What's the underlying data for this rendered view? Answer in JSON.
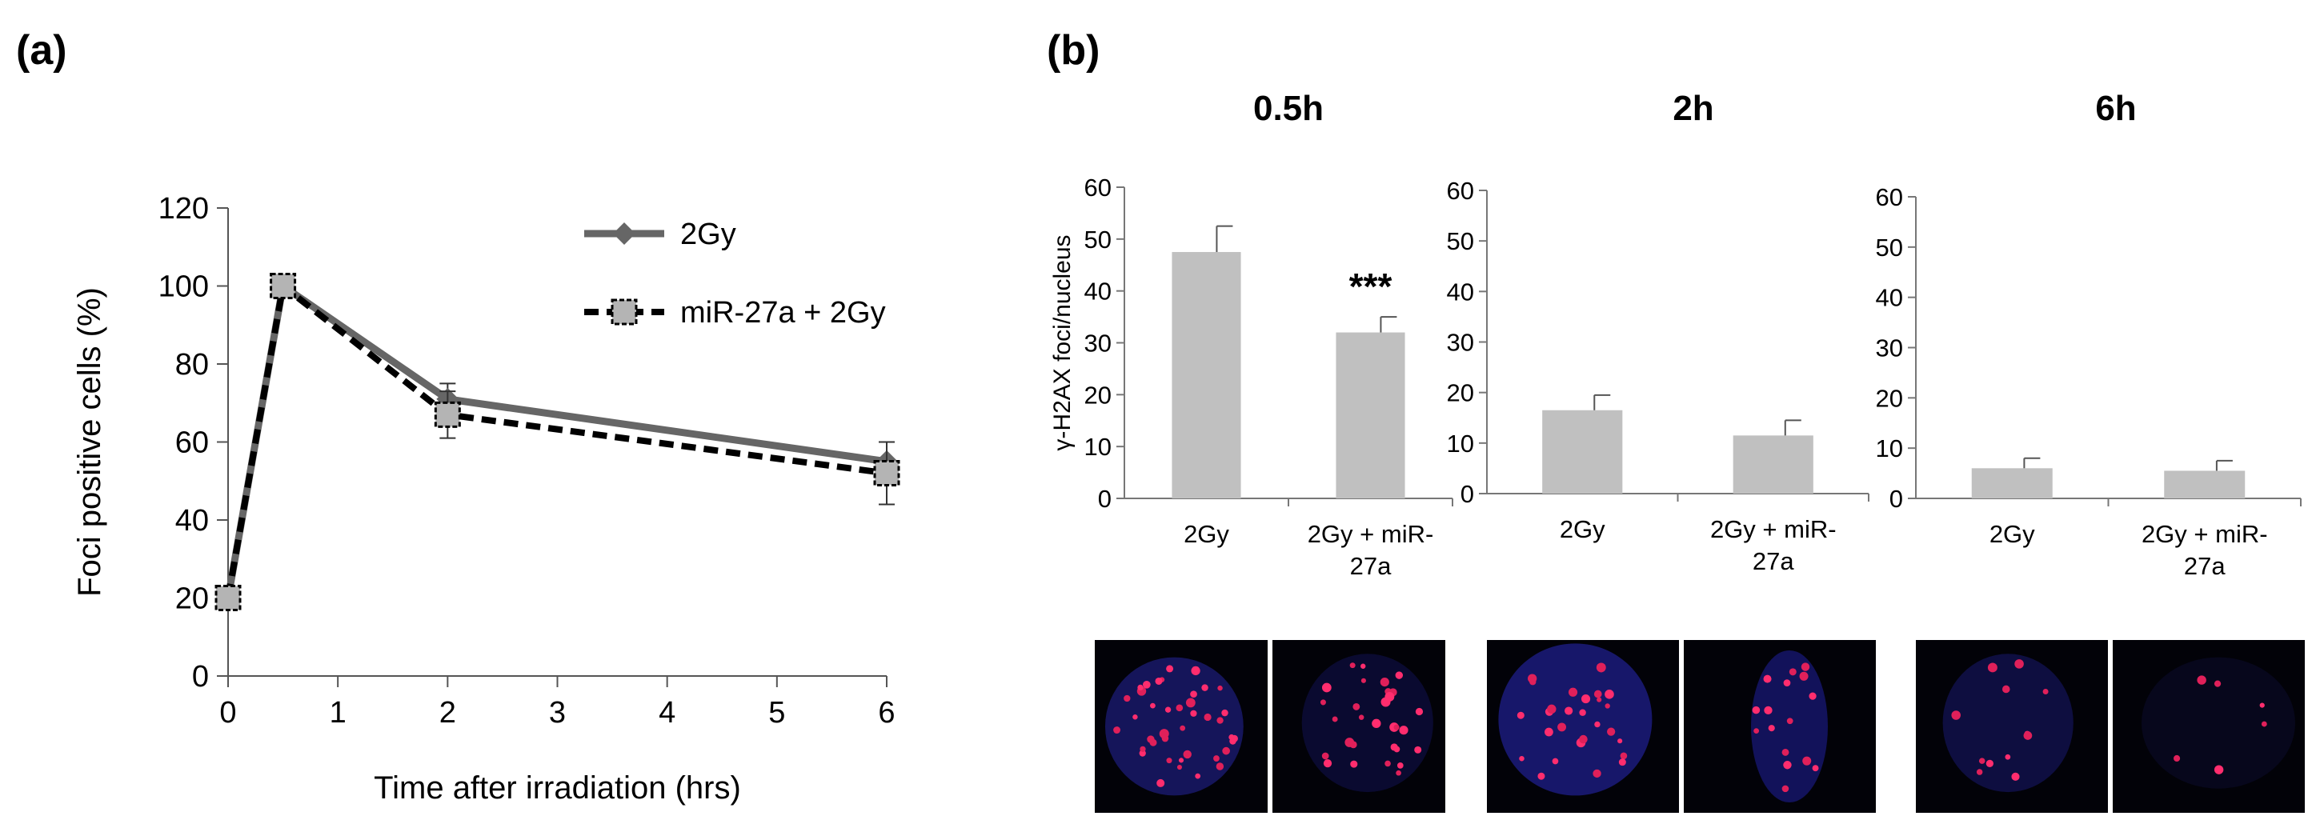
{
  "figure": {
    "panel_a_label": "(a)",
    "panel_b_label": "(b)"
  },
  "chart_data": [
    {
      "type": "line",
      "panel": "(a)",
      "xlabel": "Time after irradiation (hrs)",
      "ylabel": "Foci positive cells (%)",
      "xlim": [
        0,
        6
      ],
      "ylim": [
        0,
        120
      ],
      "xticks": [
        "0",
        "1",
        "2",
        "3",
        "4",
        "5",
        "6"
      ],
      "yticks": [
        "0",
        "20",
        "40",
        "60",
        "80",
        "100",
        "120"
      ],
      "legend_position": "top-right",
      "series": [
        {
          "name": "2Gy",
          "color": "#666666",
          "marker": "diamond",
          "line": "solid",
          "x": [
            0,
            0.5,
            2,
            6
          ],
          "y": [
            20,
            100,
            71,
            55
          ],
          "err": [
            2,
            2,
            4,
            5
          ]
        },
        {
          "name": "miR-27a + 2Gy",
          "color": "#000000",
          "marker": "square",
          "line": "dashed",
          "x": [
            0,
            0.5,
            2,
            6
          ],
          "y": [
            20,
            100,
            67,
            52
          ],
          "err": [
            2,
            2,
            6,
            8
          ]
        }
      ]
    },
    {
      "type": "bar",
      "panel": "(b)",
      "title": "0.5h",
      "ylabel": "γ-H2AX foci/nucleus",
      "ylim": [
        0,
        60
      ],
      "yticks": [
        "0",
        "10",
        "20",
        "30",
        "40",
        "50",
        "60"
      ],
      "categories": [
        "2Gy",
        "2Gy + miR-27a"
      ],
      "category_lines": [
        [
          "2Gy"
        ],
        [
          "2Gy + miR-",
          "27a"
        ]
      ],
      "values": [
        47.5,
        32
      ],
      "errors": [
        5,
        3
      ],
      "annotations": [
        "",
        "***"
      ],
      "bar_color": "#c0c0c0"
    },
    {
      "type": "bar",
      "panel": "(b)",
      "title": "2h",
      "ylabel": "",
      "ylim": [
        0,
        60
      ],
      "yticks": [
        "0",
        "10",
        "20",
        "30",
        "40",
        "50",
        "60"
      ],
      "categories": [
        "2Gy",
        "2Gy + miR-27a"
      ],
      "category_lines": [
        [
          "2Gy"
        ],
        [
          "2Gy + miR-",
          "27a"
        ]
      ],
      "values": [
        16.5,
        11.5
      ],
      "errors": [
        3,
        3
      ],
      "annotations": [
        "",
        ""
      ],
      "bar_color": "#c0c0c0"
    },
    {
      "type": "bar",
      "panel": "(b)",
      "title": "6h",
      "ylabel": "",
      "ylim": [
        0,
        60
      ],
      "yticks": [
        "0",
        "10",
        "20",
        "30",
        "40",
        "50",
        "60"
      ],
      "categories": [
        "2Gy",
        "2Gy + miR-27a"
      ],
      "category_lines": [
        [
          "2Gy"
        ],
        [
          "2Gy + miR-",
          "27a"
        ]
      ],
      "values": [
        6,
        5.5
      ],
      "errors": [
        2,
        2
      ],
      "annotations": [
        "",
        ""
      ],
      "bar_color": "#c0c0c0"
    }
  ],
  "micrographs": [
    {
      "name": "micrograph-0.5h-2gy",
      "foci": 40
    },
    {
      "name": "micrograph-0.5h-mir27a",
      "foci": 30
    },
    {
      "name": "micrograph-2h-2gy",
      "foci": 28
    },
    {
      "name": "micrograph-2h-mir27a",
      "foci": 16
    },
    {
      "name": "micrograph-6h-2gy",
      "foci": 12
    },
    {
      "name": "micrograph-6h-mir27a",
      "foci": 6
    }
  ]
}
